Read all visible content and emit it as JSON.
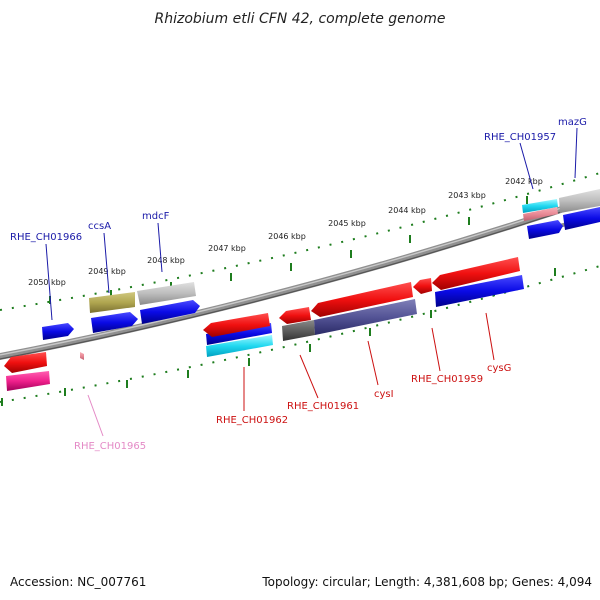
{
  "title": "Rhizobium etli CFN 42, complete genome",
  "footer": {
    "accession": "Accession: NC_007761",
    "summary": "Topology: circular; Length: 4,381,608 bp; Genes: 4,094"
  },
  "ticks": [
    "2050 kbp",
    "2049 kbp",
    "2048 kbp",
    "2047 kbp",
    "2046 kbp",
    "2045 kbp",
    "2044 kbp",
    "2043 kbp",
    "2042 kbp"
  ],
  "genes": {
    "rhe_ch01966": "RHE_CH01966",
    "ccsa": "ccsA",
    "mdcf": "mdcF",
    "rhe_ch01957": "RHE_CH01957",
    "mazg": "mazG",
    "rhe_ch01965": "RHE_CH01965",
    "rhe_ch01962": "RHE_CH01962",
    "rhe_ch01961": "RHE_CH01961",
    "cysi": "cysI",
    "rhe_ch01959": "RHE_CH01959",
    "cysg": "cysG"
  },
  "colors": {
    "forward": "#1010dd",
    "reverse": "#ee1111",
    "label_forward": "#1a1aa8",
    "label_reverse": "#cc1111",
    "label_pink": "#e48ac6",
    "tick_green": "#1e7d1e"
  }
}
